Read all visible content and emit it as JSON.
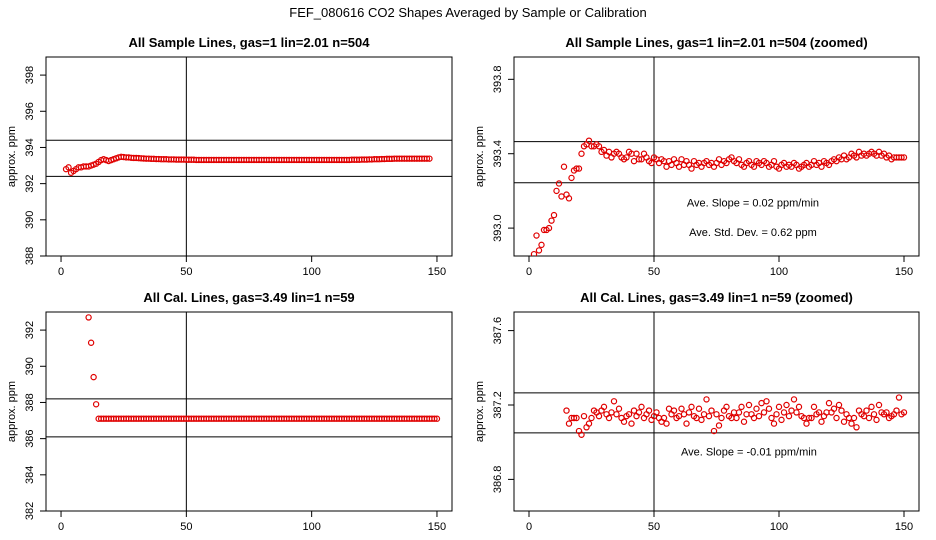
{
  "figure": {
    "title": "FEF_080616  CO2 Shapes Averaged by Sample or Calibration",
    "marker_color": "#e00000"
  },
  "chart_data": [
    {
      "type": "scatter",
      "title": "All Sample Lines, gas=1 lin=2.01 n=504",
      "xlabel": "",
      "ylabel": "approx. ppm",
      "xlim": [
        -6,
        156
      ],
      "ylim": [
        388,
        399
      ],
      "xticks": [
        0,
        50,
        100,
        150
      ],
      "yticks": [
        388,
        390,
        392,
        394,
        396,
        398
      ],
      "hlines": [
        394.4,
        392.4
      ],
      "vline": 50,
      "annotations": [],
      "series": [
        {
          "x_start": 2,
          "x_step": 1,
          "values": [
            392.8,
            392.9,
            392.6,
            392.7,
            392.8,
            392.9,
            392.9,
            392.95,
            392.95,
            392.95,
            393.0,
            393.05,
            393.1,
            393.2,
            393.3,
            393.35,
            393.3,
            393.25,
            393.3,
            393.35,
            393.4,
            393.45,
            393.48,
            393.47,
            393.45,
            393.45,
            393.43,
            393.42,
            393.42,
            393.41,
            393.4,
            393.39,
            393.38,
            393.38,
            393.37,
            393.37,
            393.36,
            393.36,
            393.35,
            393.35,
            393.35,
            393.34,
            393.34,
            393.34,
            393.33,
            393.33,
            393.33,
            393.33,
            393.32,
            393.32,
            393.32,
            393.32,
            393.31,
            393.31,
            393.31,
            393.31,
            393.31,
            393.31,
            393.31,
            393.31,
            393.31,
            393.31,
            393.31,
            393.31,
            393.31,
            393.31,
            393.31,
            393.31,
            393.31,
            393.31,
            393.31,
            393.31,
            393.31,
            393.31,
            393.31,
            393.31,
            393.31,
            393.31,
            393.31,
            393.31,
            393.31,
            393.31,
            393.31,
            393.31,
            393.31,
            393.31,
            393.31,
            393.31,
            393.31,
            393.31,
            393.31,
            393.31,
            393.31,
            393.31,
            393.31,
            393.31,
            393.31,
            393.31,
            393.31,
            393.31,
            393.31,
            393.31,
            393.31,
            393.31,
            393.31,
            393.31,
            393.31,
            393.31,
            393.31,
            393.31,
            393.31,
            393.31,
            393.31,
            393.31,
            393.32,
            393.32,
            393.32,
            393.32,
            393.33,
            393.33,
            393.33,
            393.34,
            393.34,
            393.35,
            393.35,
            393.35,
            393.36,
            393.36,
            393.37,
            393.37,
            393.37,
            393.38,
            393.38,
            393.38,
            393.38,
            393.38,
            393.38,
            393.38,
            393.38,
            393.38,
            393.38,
            393.38,
            393.38,
            393.38,
            393.38,
            393.38
          ]
        }
      ]
    },
    {
      "type": "scatter",
      "title": "All Sample Lines, gas=1 lin=2.01 n=504 (zoomed)",
      "xlabel": "",
      "ylabel": "approx. ppm",
      "xlim": [
        -6,
        156
      ],
      "ylim": [
        392.85,
        393.92
      ],
      "xticks": [
        0,
        50,
        100,
        150
      ],
      "yticks": [
        393.0,
        393.4,
        393.8
      ],
      "ytick_labels": [
        "393.0",
        "393.4",
        "393.8"
      ],
      "hlines": [
        393.465,
        393.244
      ],
      "vline": 50,
      "annotations": [
        "Ave. Slope =  0.02  ppm/min",
        "Ave. Std. Dev. =  0.62  ppm"
      ],
      "series": [
        {
          "x_start": 2,
          "x_step": 1,
          "values": [
            392.86,
            392.96,
            392.88,
            392.91,
            392.99,
            392.99,
            393.0,
            393.04,
            393.07,
            393.2,
            393.24,
            393.17,
            393.33,
            393.18,
            393.16,
            393.27,
            393.31,
            393.32,
            393.32,
            393.4,
            393.44,
            393.45,
            393.47,
            393.44,
            393.44,
            393.45,
            393.44,
            393.41,
            393.42,
            393.39,
            393.41,
            393.38,
            393.4,
            393.41,
            393.4,
            393.38,
            393.37,
            393.38,
            393.41,
            393.4,
            393.36,
            393.4,
            393.37,
            393.37,
            393.4,
            393.38,
            393.36,
            393.35,
            393.38,
            393.37,
            393.35,
            393.37,
            393.36,
            393.33,
            393.36,
            393.34,
            393.37,
            393.35,
            393.33,
            393.37,
            393.34,
            393.36,
            393.34,
            393.32,
            393.36,
            393.34,
            393.35,
            393.33,
            393.35,
            393.36,
            393.34,
            393.35,
            393.33,
            393.35,
            393.37,
            393.34,
            393.36,
            393.35,
            393.37,
            393.38,
            393.36,
            393.35,
            393.37,
            393.34,
            393.33,
            393.35,
            393.36,
            393.34,
            393.33,
            393.36,
            393.35,
            393.34,
            393.36,
            393.35,
            393.33,
            393.34,
            393.36,
            393.33,
            393.32,
            393.34,
            393.35,
            393.33,
            393.34,
            393.33,
            393.35,
            393.34,
            393.32,
            393.33,
            393.34,
            393.35,
            393.33,
            393.34,
            393.36,
            393.34,
            393.35,
            393.33,
            393.36,
            393.35,
            393.34,
            393.36,
            393.37,
            393.36,
            393.38,
            393.37,
            393.39,
            393.37,
            393.38,
            393.4,
            393.39,
            393.38,
            393.41,
            393.39,
            393.4,
            393.39,
            393.4,
            393.41,
            393.4,
            393.39,
            393.41,
            393.39,
            393.4,
            393.38,
            393.39,
            393.37,
            393.38,
            393.38,
            393.38,
            393.38,
            393.38
          ]
        }
      ]
    },
    {
      "type": "scatter",
      "title": "All Cal. Lines, gas=3.49 lin=1 n=59",
      "xlabel": "",
      "ylabel": "approx. ppm",
      "xlim": [
        -6,
        156
      ],
      "ylim": [
        382,
        393
      ],
      "xticks": [
        0,
        50,
        100,
        150
      ],
      "yticks": [
        382,
        384,
        386,
        388,
        390,
        392
      ],
      "hlines": [
        388.2,
        386.1
      ],
      "vline": 50,
      "annotations": [],
      "series": [
        {
          "x_start": 11,
          "x_step": 1,
          "values": [
            392.7,
            391.3,
            389.4,
            387.9,
            387.1,
            387.1,
            387.1,
            387.1,
            387.1,
            387.1,
            387.1,
            387.1,
            387.1,
            387.1,
            387.1,
            387.1,
            387.1,
            387.1,
            387.1,
            387.1,
            387.1,
            387.1,
            387.1,
            387.1,
            387.1,
            387.1,
            387.1,
            387.1,
            387.1,
            387.1,
            387.1,
            387.1,
            387.1,
            387.1,
            387.1,
            387.1,
            387.1,
            387.1,
            387.1,
            387.1,
            387.1,
            387.1,
            387.1,
            387.1,
            387.1,
            387.1,
            387.1,
            387.1,
            387.1,
            387.1,
            387.1,
            387.1,
            387.1,
            387.1,
            387.1,
            387.1,
            387.1,
            387.1,
            387.1,
            387.1,
            387.1,
            387.1,
            387.1,
            387.1,
            387.1,
            387.1,
            387.1,
            387.1,
            387.1,
            387.1,
            387.1,
            387.1,
            387.1,
            387.1,
            387.1,
            387.1,
            387.1,
            387.1,
            387.1,
            387.1,
            387.1,
            387.1,
            387.1,
            387.1,
            387.1,
            387.1,
            387.1,
            387.1,
            387.1,
            387.1,
            387.1,
            387.1,
            387.1,
            387.1,
            387.1,
            387.1,
            387.1,
            387.1,
            387.1,
            387.1,
            387.1,
            387.1,
            387.1,
            387.1,
            387.1,
            387.1,
            387.1,
            387.1,
            387.1,
            387.1,
            387.1,
            387.1,
            387.1,
            387.1,
            387.1,
            387.1,
            387.1,
            387.1,
            387.1,
            387.1,
            387.1,
            387.1,
            387.1,
            387.1,
            387.1,
            387.1,
            387.1,
            387.1,
            387.1,
            387.1,
            387.1,
            387.1,
            387.1,
            387.1,
            387.1,
            387.1,
            387.1,
            387.1,
            387.1,
            387.1
          ]
        }
      ]
    },
    {
      "type": "scatter",
      "title": "All Cal. Lines, gas=3.49 lin=1 n=59 (zoomed)",
      "xlabel": "",
      "ylabel": "approx. ppm",
      "xlim": [
        -6,
        156
      ],
      "ylim": [
        386.63,
        387.7
      ],
      "xticks": [
        0,
        50,
        100,
        150
      ],
      "yticks": [
        386.8,
        387.2,
        387.6
      ],
      "ytick_labels": [
        "386.8",
        "387.2",
        "387.6"
      ],
      "hlines": [
        387.265,
        387.05
      ],
      "vline": 50,
      "annotations": [
        "Ave. Slope =  -0.01  ppm/min"
      ],
      "series": [
        {
          "x_start": 15,
          "x_step": 1,
          "values": [
            387.17,
            387.1,
            387.13,
            387.13,
            387.13,
            387.06,
            387.04,
            387.14,
            387.08,
            387.1,
            387.13,
            387.17,
            387.16,
            387.14,
            387.17,
            387.19,
            387.15,
            387.13,
            387.16,
            387.22,
            387.15,
            387.18,
            387.13,
            387.11,
            387.14,
            387.15,
            387.1,
            387.17,
            387.14,
            387.16,
            387.19,
            387.13,
            387.15,
            387.17,
            387.12,
            387.14,
            387.16,
            387.13,
            387.11,
            387.13,
            387.1,
            387.18,
            387.15,
            387.17,
            387.13,
            387.14,
            387.18,
            387.15,
            387.1,
            387.16,
            387.19,
            387.14,
            387.13,
            387.18,
            387.12,
            387.15,
            387.23,
            387.14,
            387.17,
            387.06,
            387.15,
            387.09,
            387.13,
            387.17,
            387.19,
            387.14,
            387.13,
            387.16,
            387.13,
            387.16,
            387.19,
            387.11,
            387.15,
            387.2,
            387.15,
            387.13,
            387.18,
            387.14,
            387.21,
            387.16,
            387.22,
            387.18,
            387.13,
            387.1,
            387.15,
            387.19,
            387.12,
            387.16,
            387.2,
            387.14,
            387.17,
            387.23,
            387.16,
            387.19,
            387.14,
            387.13,
            387.1,
            387.13,
            387.13,
            387.19,
            387.15,
            387.16,
            387.11,
            387.14,
            387.16,
            387.21,
            387.16,
            387.18,
            387.13,
            387.2,
            387.17,
            387.11,
            387.15,
            387.13,
            387.1,
            387.13,
            387.08,
            387.17,
            387.15,
            387.14,
            387.17,
            387.13,
            387.19,
            387.15,
            387.12,
            387.2,
            387.16,
            387.15,
            387.16,
            387.13,
            387.14,
            387.15,
            387.17,
            387.24,
            387.15,
            387.16
          ]
        }
      ]
    }
  ]
}
